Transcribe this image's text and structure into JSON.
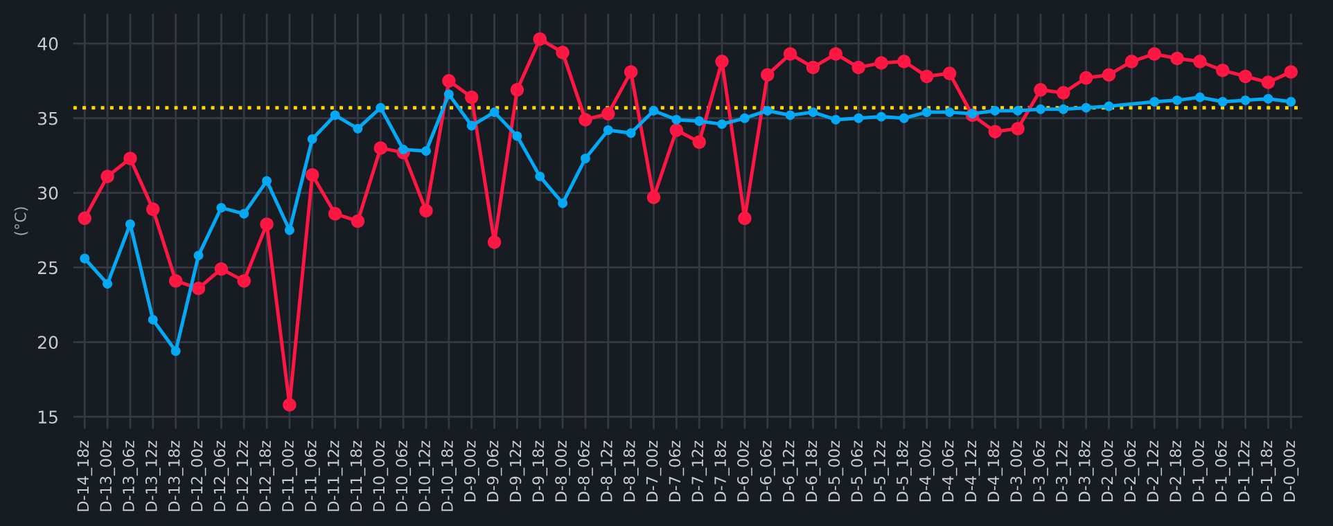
{
  "chart_data": {
    "type": "line",
    "ylabel": "(°C)",
    "categories": [
      "D-14_18z",
      "D-13_00z",
      "D-13_06z",
      "D-13_12z",
      "D-13_18z",
      "D-12_00z",
      "D-12_06z",
      "D-12_12z",
      "D-12_18z",
      "D-11_00z",
      "D-11_06z",
      "D-11_12z",
      "D-11_18z",
      "D-10_00z",
      "D-10_06z",
      "D-10_12z",
      "D-10_18z",
      "D-9_00z",
      "D-9_06z",
      "D-9_12z",
      "D-9_18z",
      "D-8_00z",
      "D-8_06z",
      "D-8_12z",
      "D-8_18z",
      "D-7_00z",
      "D-7_06z",
      "D-7_12z",
      "D-7_18z",
      "D-6_00z",
      "D-6_06z",
      "D-6_12z",
      "D-6_18z",
      "D-5_00z",
      "D-5_06z",
      "D-5_12z",
      "D-5_18z",
      "D-4_00z",
      "D-4_06z",
      "D-4_12z",
      "D-4_18z",
      "D-3_00z",
      "D-3_06z",
      "D-3_12z",
      "D-3_18z",
      "D-2_00z",
      "D-2_06z",
      "D-2_12z",
      "D-2_18z",
      "D-1_00z",
      "D-1_06z",
      "D-1_12z",
      "D-1_18z",
      "D-0_00z"
    ],
    "series": [
      {
        "color": "#ff1744",
        "values": [
          28.3,
          31.1,
          32.3,
          28.9,
          24.1,
          23.6,
          24.9,
          24.1,
          27.9,
          15.8,
          31.2,
          28.6,
          28.1,
          33.0,
          32.7,
          28.8,
          37.5,
          36.4,
          26.7,
          36.9,
          40.3,
          39.4,
          34.9,
          35.3,
          38.1,
          29.7,
          34.2,
          33.4,
          38.8,
          28.3,
          37.9,
          39.3,
          38.4,
          39.3,
          38.4,
          38.7,
          38.8,
          37.8,
          38.0,
          35.2,
          34.1,
          34.3,
          36.9,
          36.7,
          37.7,
          37.9,
          38.8,
          39.3,
          39.0,
          38.8,
          38.2,
          37.8,
          37.4,
          38.1
        ]
      },
      {
        "color": "#03a9f4",
        "values": [
          25.6,
          23.9,
          27.9,
          21.5,
          19.4,
          25.8,
          29.0,
          28.6,
          30.8,
          27.5,
          33.6,
          35.2,
          34.3,
          35.7,
          32.9,
          32.8,
          36.6,
          34.5,
          35.4,
          33.8,
          31.1,
          29.3,
          32.3,
          34.2,
          34.0,
          35.5,
          34.9,
          34.8,
          34.6,
          35.0,
          35.5,
          35.2,
          35.4,
          34.9,
          35.0,
          35.1,
          35.0,
          35.4,
          35.4,
          35.3,
          35.5,
          35.5,
          35.6,
          35.6,
          35.7,
          35.8,
          null,
          36.1,
          36.2,
          36.4,
          36.1,
          36.2,
          36.3,
          36.1
        ]
      }
    ],
    "ylim": [
      14.2,
      42
    ],
    "yticks": [
      15,
      20,
      25,
      30,
      35,
      40
    ],
    "ref_lines": [
      {
        "axis": "y",
        "value": 35.7,
        "color": "#ffd600",
        "line_style": "dotted"
      }
    ],
    "grid": true,
    "legend": false,
    "marker": "circle",
    "line_style": "solid"
  }
}
